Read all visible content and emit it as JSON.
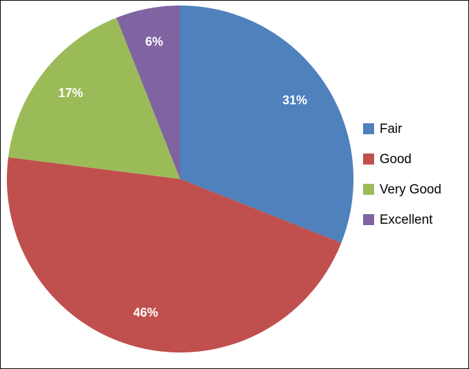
{
  "chart_data": {
    "type": "pie",
    "categories": [
      "Fair",
      "Good",
      "Very Good",
      "Excellent"
    ],
    "values": [
      31,
      46,
      17,
      6
    ],
    "value_labels": [
      "31%",
      "46%",
      "17%",
      "6%"
    ],
    "colors": [
      "#4f81bd",
      "#c0504d",
      "#9bbb59",
      "#8064a2"
    ],
    "legend": "right"
  }
}
